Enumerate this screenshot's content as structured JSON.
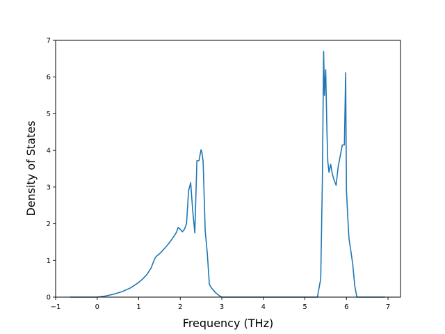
{
  "chart_data": {
    "type": "line",
    "title": "",
    "xlabel": "Frequency (THz)",
    "ylabel": "Density of States",
    "xlim": [
      -1,
      7.3
    ],
    "ylim": [
      0,
      7
    ],
    "xticks": [
      -1,
      0,
      1,
      2,
      3,
      4,
      5,
      6,
      7
    ],
    "yticks": [
      0,
      1,
      2,
      3,
      4,
      5,
      6,
      7
    ],
    "grid": false,
    "legend": "none",
    "series_color": "#1f77b4",
    "series": [
      {
        "x": [
          -0.65,
          -0.2,
          0.0,
          0.2,
          0.4,
          0.6,
          0.8,
          1.0,
          1.1,
          1.2,
          1.3,
          1.35,
          1.4,
          1.45,
          1.5,
          1.6,
          1.7,
          1.8,
          1.9,
          1.95,
          2.0,
          2.05,
          2.1,
          2.15,
          2.2,
          2.25,
          2.3,
          2.35,
          2.4,
          2.45,
          2.5,
          2.52,
          2.55,
          2.6,
          2.65,
          2.7,
          2.75,
          2.85,
          2.95,
          3.0,
          3.5,
          4.0,
          4.5,
          5.0,
          5.3,
          5.38,
          5.42,
          5.45,
          5.47,
          5.5,
          5.53,
          5.55,
          5.58,
          5.62,
          5.66,
          5.7,
          5.75,
          5.8,
          5.85,
          5.9,
          5.95,
          5.98,
          6.0,
          6.03,
          6.06,
          6.1,
          6.15,
          6.2,
          6.25,
          6.28,
          6.3,
          6.4,
          6.93
        ],
        "y": [
          0,
          0,
          0.0,
          0.03,
          0.08,
          0.15,
          0.25,
          0.4,
          0.5,
          0.62,
          0.8,
          0.95,
          1.08,
          1.14,
          1.18,
          1.3,
          1.43,
          1.58,
          1.75,
          1.9,
          1.85,
          1.78,
          1.85,
          2.0,
          2.9,
          3.12,
          2.35,
          1.75,
          3.72,
          3.72,
          4.02,
          3.95,
          3.7,
          1.8,
          1.2,
          0.35,
          0.25,
          0.12,
          0.03,
          0.0,
          0.0,
          0.0,
          0.0,
          0.0,
          0.0,
          0.5,
          3.2,
          6.7,
          5.5,
          6.2,
          4.5,
          3.7,
          3.4,
          3.62,
          3.35,
          3.2,
          3.05,
          3.55,
          3.85,
          4.15,
          4.15,
          6.12,
          2.9,
          2.2,
          1.6,
          1.3,
          0.9,
          0.3,
          0.0,
          0.0,
          0.0,
          0.0,
          0.0
        ]
      }
    ]
  }
}
